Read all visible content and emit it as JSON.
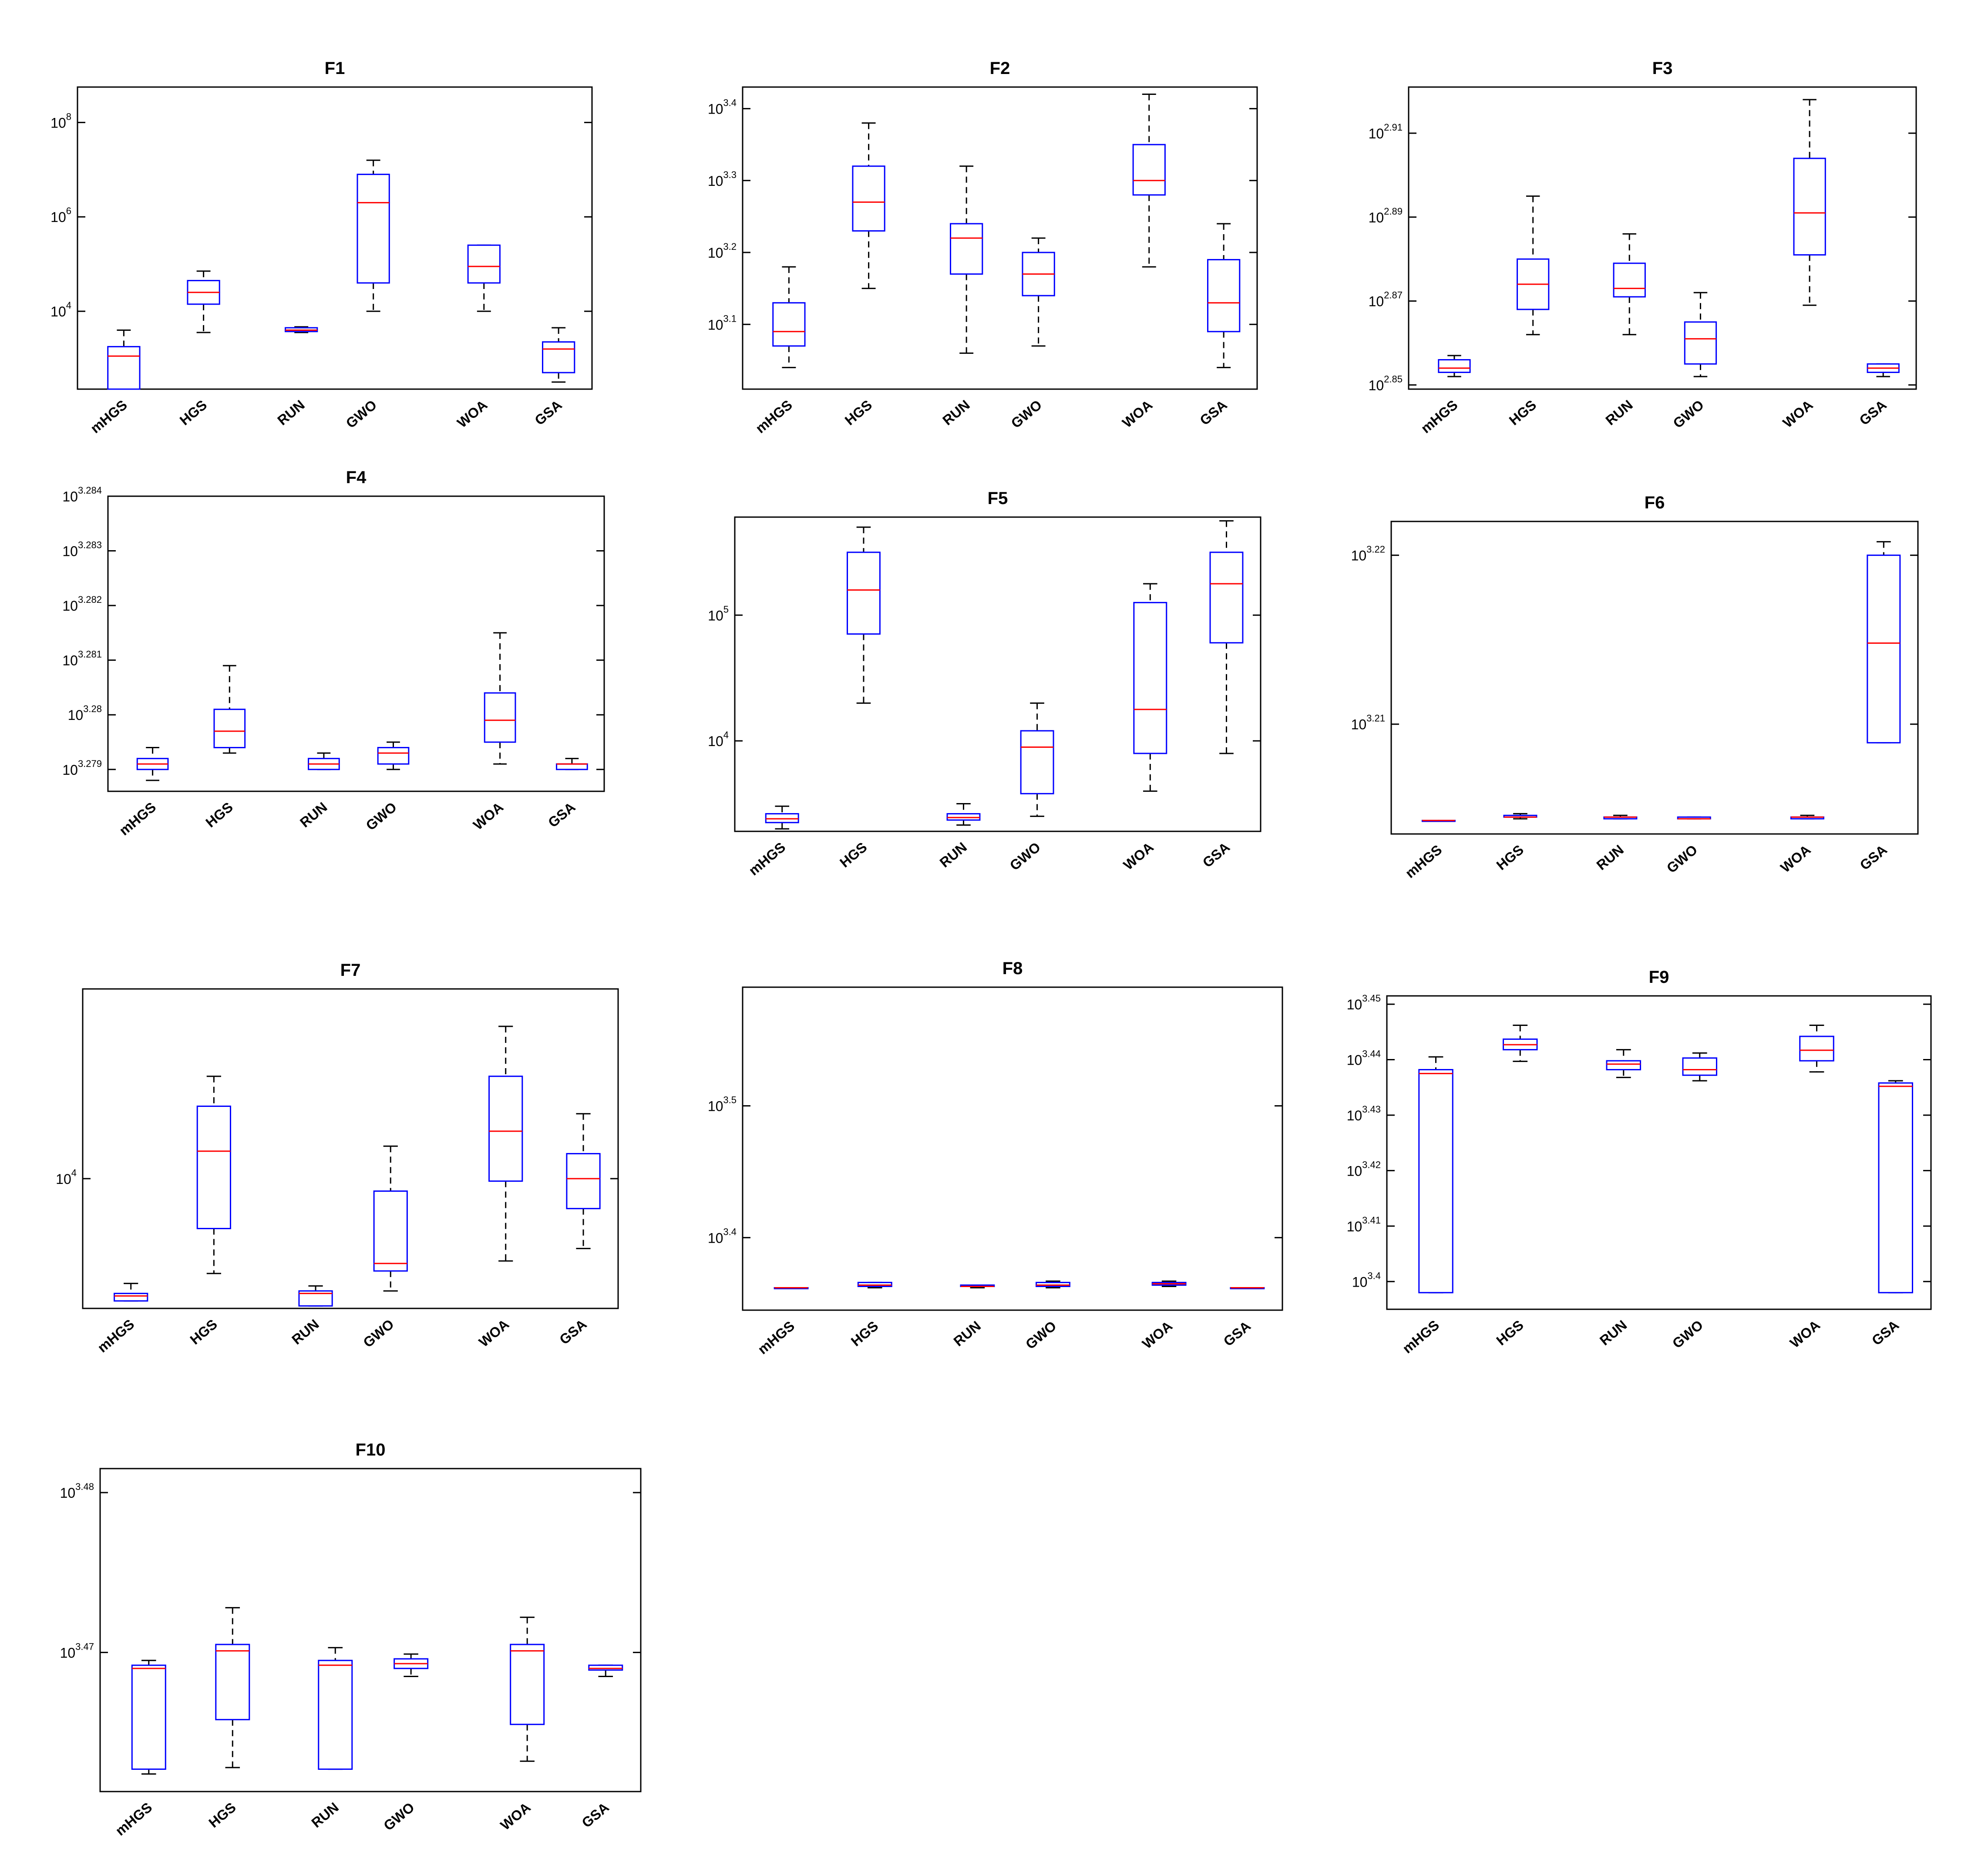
{
  "colors": {
    "box": "#0000ff",
    "median": "#ff0000",
    "whisker": "#000000",
    "axes": "#000000",
    "background": "#ffffff"
  },
  "chart_data": [
    {
      "type": "box",
      "title": "F1",
      "xlabel": "",
      "ylabel": "",
      "yscale": "log10",
      "categories": [
        "mHGS",
        "HGS",
        "RUN",
        "GWO",
        "WOA",
        "GSA"
      ],
      "yticks": [
        {
          "label_base": "10",
          "label_exp": "4",
          "value_log": 4
        },
        {
          "label_base": "10",
          "label_exp": "6",
          "value_log": 6
        },
        {
          "label_base": "10",
          "label_exp": "8",
          "value_log": 8
        }
      ],
      "ylim_log": [
        2.35,
        8.75
      ],
      "series": [
        {
          "category": "mHGS",
          "min": 2.35,
          "q1": 2.35,
          "median": 3.05,
          "q3": 3.25,
          "max": 3.6
        },
        {
          "category": "HGS",
          "min": 3.55,
          "q1": 4.15,
          "median": 4.4,
          "q3": 4.65,
          "max": 4.85
        },
        {
          "category": "RUN",
          "min": 3.55,
          "q1": 3.57,
          "median": 3.6,
          "q3": 3.65,
          "max": 3.67
        },
        {
          "category": "GWO",
          "min": 4.0,
          "q1": 4.6,
          "median": 6.3,
          "q3": 6.9,
          "max": 7.2
        },
        {
          "category": "WOA",
          "min": 4.0,
          "q1": 4.6,
          "median": 4.95,
          "q3": 5.4,
          "max": 5.4
        },
        {
          "category": "GSA",
          "min": 2.5,
          "q1": 2.7,
          "median": 3.2,
          "q3": 3.35,
          "max": 3.65
        }
      ]
    },
    {
      "type": "box",
      "title": "F2",
      "xlabel": "",
      "ylabel": "",
      "yscale": "log10",
      "categories": [
        "mHGS",
        "HGS",
        "RUN",
        "GWO",
        "WOA",
        "GSA"
      ],
      "yticks": [
        {
          "label_base": "10",
          "label_exp": "3.1",
          "value_log": 3.1
        },
        {
          "label_base": "10",
          "label_exp": "3.2",
          "value_log": 3.2
        },
        {
          "label_base": "10",
          "label_exp": "3.3",
          "value_log": 3.3
        },
        {
          "label_base": "10",
          "label_exp": "3.4",
          "value_log": 3.4
        }
      ],
      "ylim_log": [
        3.01,
        3.43
      ],
      "series": [
        {
          "category": "mHGS",
          "min": 3.04,
          "q1": 3.07,
          "median": 3.09,
          "q3": 3.13,
          "max": 3.18
        },
        {
          "category": "HGS",
          "min": 3.15,
          "q1": 3.23,
          "median": 3.27,
          "q3": 3.32,
          "max": 3.38
        },
        {
          "category": "RUN",
          "min": 3.06,
          "q1": 3.17,
          "median": 3.22,
          "q3": 3.24,
          "max": 3.32
        },
        {
          "category": "GWO",
          "min": 3.07,
          "q1": 3.14,
          "median": 3.17,
          "q3": 3.2,
          "max": 3.22
        },
        {
          "category": "WOA",
          "min": 3.18,
          "q1": 3.28,
          "median": 3.3,
          "q3": 3.35,
          "max": 3.42
        },
        {
          "category": "GSA",
          "min": 3.04,
          "q1": 3.09,
          "median": 3.13,
          "q3": 3.19,
          "max": 3.24
        }
      ]
    },
    {
      "type": "box",
      "title": "F3",
      "xlabel": "",
      "ylabel": "",
      "yscale": "log10",
      "categories": [
        "mHGS",
        "HGS",
        "RUN",
        "GWO",
        "WOA",
        "GSA"
      ],
      "yticks": [
        {
          "label_base": "10",
          "label_exp": "2.85",
          "value_log": 2.85
        },
        {
          "label_base": "10",
          "label_exp": "2.87",
          "value_log": 2.87
        },
        {
          "label_base": "10",
          "label_exp": "2.89",
          "value_log": 2.89
        },
        {
          "label_base": "10",
          "label_exp": "2.91",
          "value_log": 2.91
        }
      ],
      "ylim_log": [
        2.849,
        2.921
      ],
      "series": [
        {
          "category": "mHGS",
          "min": 2.852,
          "q1": 2.853,
          "median": 2.854,
          "q3": 2.856,
          "max": 2.857
        },
        {
          "category": "HGS",
          "min": 2.862,
          "q1": 2.868,
          "median": 2.874,
          "q3": 2.88,
          "max": 2.895
        },
        {
          "category": "RUN",
          "min": 2.862,
          "q1": 2.871,
          "median": 2.873,
          "q3": 2.879,
          "max": 2.886
        },
        {
          "category": "GWO",
          "min": 2.852,
          "q1": 2.855,
          "median": 2.861,
          "q3": 2.865,
          "max": 2.872
        },
        {
          "category": "WOA",
          "min": 2.869,
          "q1": 2.881,
          "median": 2.891,
          "q3": 2.904,
          "max": 2.918
        },
        {
          "category": "GSA",
          "min": 2.852,
          "q1": 2.853,
          "median": 2.854,
          "q3": 2.855,
          "max": 2.855
        }
      ]
    },
    {
      "type": "box",
      "title": "F4",
      "xlabel": "",
      "ylabel": "",
      "yscale": "log10",
      "categories": [
        "mHGS",
        "HGS",
        "RUN",
        "GWO",
        "WOA",
        "GSA"
      ],
      "yticks": [
        {
          "label_base": "10",
          "label_exp": "3.279",
          "value_log": 3.279
        },
        {
          "label_base": "10",
          "label_exp": "3.28",
          "value_log": 3.28
        },
        {
          "label_base": "10",
          "label_exp": "3.281",
          "value_log": 3.281
        },
        {
          "label_base": "10",
          "label_exp": "3.282",
          "value_log": 3.282
        },
        {
          "label_base": "10",
          "label_exp": "3.283",
          "value_log": 3.283
        },
        {
          "label_base": "10",
          "label_exp": "3.284",
          "value_log": 3.284
        }
      ],
      "ylim_log": [
        3.2786,
        3.284
      ],
      "series": [
        {
          "category": "mHGS",
          "min": 3.2788,
          "q1": 3.279,
          "median": 3.2791,
          "q3": 3.2792,
          "max": 3.2794
        },
        {
          "category": "HGS",
          "min": 3.2793,
          "q1": 3.2794,
          "median": 3.2797,
          "q3": 3.2801,
          "max": 3.2809
        },
        {
          "category": "RUN",
          "min": 3.279,
          "q1": 3.279,
          "median": 3.2791,
          "q3": 3.2792,
          "max": 3.2793
        },
        {
          "category": "GWO",
          "min": 3.279,
          "q1": 3.2791,
          "median": 3.2793,
          "q3": 3.2794,
          "max": 3.2795
        },
        {
          "category": "WOA",
          "min": 3.2791,
          "q1": 3.2795,
          "median": 3.2799,
          "q3": 3.2804,
          "max": 3.2815
        },
        {
          "category": "GSA",
          "min": 3.279,
          "q1": 3.279,
          "median": 3.2791,
          "q3": 3.2791,
          "max": 3.2792
        }
      ]
    },
    {
      "type": "box",
      "title": "F5",
      "xlabel": "",
      "ylabel": "",
      "yscale": "log10",
      "categories": [
        "mHGS",
        "HGS",
        "RUN",
        "GWO",
        "WOA",
        "GSA"
      ],
      "yticks": [
        {
          "label_base": "10",
          "label_exp": "4",
          "value_log": 4
        },
        {
          "label_base": "10",
          "label_exp": "5",
          "value_log": 5
        }
      ],
      "ylim_log": [
        3.28,
        5.78
      ],
      "series": [
        {
          "category": "mHGS",
          "min": 3.3,
          "q1": 3.35,
          "median": 3.38,
          "q3": 3.42,
          "max": 3.48
        },
        {
          "category": "HGS",
          "min": 4.3,
          "q1": 4.85,
          "median": 5.2,
          "q3": 5.5,
          "max": 5.7
        },
        {
          "category": "RUN",
          "min": 3.33,
          "q1": 3.37,
          "median": 3.39,
          "q3": 3.42,
          "max": 3.5
        },
        {
          "category": "GWO",
          "min": 3.4,
          "q1": 3.58,
          "median": 3.95,
          "q3": 4.08,
          "max": 4.3
        },
        {
          "category": "WOA",
          "min": 3.6,
          "q1": 3.9,
          "median": 4.25,
          "q3": 5.1,
          "max": 5.25
        },
        {
          "category": "GSA",
          "min": 3.9,
          "q1": 4.78,
          "median": 5.25,
          "q3": 5.5,
          "max": 5.75
        }
      ]
    },
    {
      "type": "box",
      "title": "F6",
      "xlabel": "",
      "ylabel": "",
      "yscale": "log10",
      "categories": [
        "mHGS",
        "HGS",
        "RUN",
        "GWO",
        "WOA",
        "GSA"
      ],
      "yticks": [
        {
          "label_base": "10",
          "label_exp": "3.21",
          "value_log": 3.21
        },
        {
          "label_base": "10",
          "label_exp": "3.22",
          "value_log": 3.22
        }
      ],
      "ylim_log": [
        3.2035,
        3.222
      ],
      "series": [
        {
          "category": "mHGS",
          "min": 3.2043,
          "q1": 3.2043,
          "median": 3.2043,
          "q3": 3.2043,
          "max": 3.2043
        },
        {
          "category": "HGS",
          "min": 3.2044,
          "q1": 3.2045,
          "median": 3.2045,
          "q3": 3.2046,
          "max": 3.2047
        },
        {
          "category": "RUN",
          "min": 3.2044,
          "q1": 3.2044,
          "median": 3.2045,
          "q3": 3.2045,
          "max": 3.2046
        },
        {
          "category": "GWO",
          "min": 3.2044,
          "q1": 3.2044,
          "median": 3.2044,
          "q3": 3.2045,
          "max": 3.2045
        },
        {
          "category": "WOA",
          "min": 3.2044,
          "q1": 3.2044,
          "median": 3.2045,
          "q3": 3.2045,
          "max": 3.2046
        },
        {
          "category": "GSA",
          "min": 3.2089,
          "q1": 3.2089,
          "median": 3.2148,
          "q3": 3.22,
          "max": 3.2208
        }
      ]
    },
    {
      "type": "box",
      "title": "F7",
      "xlabel": "",
      "ylabel": "",
      "yscale": "log10",
      "categories": [
        "mHGS",
        "HGS",
        "RUN",
        "GWO",
        "WOA",
        "GSA"
      ],
      "yticks": [
        {
          "label_base": "10",
          "label_exp": "4",
          "value_log": 4
        }
      ],
      "ylim_log": [
        3.48,
        4.76
      ],
      "series": [
        {
          "category": "mHGS",
          "min": 3.51,
          "q1": 3.51,
          "median": 3.53,
          "q3": 3.54,
          "max": 3.58
        },
        {
          "category": "HGS",
          "min": 3.62,
          "q1": 3.8,
          "median": 4.11,
          "q3": 4.29,
          "max": 4.41
        },
        {
          "category": "RUN",
          "min": 3.49,
          "q1": 3.49,
          "median": 3.54,
          "q3": 3.55,
          "max": 3.57
        },
        {
          "category": "GWO",
          "min": 3.55,
          "q1": 3.63,
          "median": 3.66,
          "q3": 3.95,
          "max": 4.13
        },
        {
          "category": "WOA",
          "min": 3.67,
          "q1": 3.99,
          "median": 4.19,
          "q3": 4.41,
          "max": 4.61
        },
        {
          "category": "GSA",
          "min": 3.72,
          "q1": 3.88,
          "median": 4.0,
          "q3": 4.1,
          "max": 4.26
        }
      ]
    },
    {
      "type": "box",
      "title": "F8",
      "xlabel": "",
      "ylabel": "",
      "yscale": "log10",
      "categories": [
        "mHGS",
        "HGS",
        "RUN",
        "GWO",
        "WOA",
        "GSA"
      ],
      "yticks": [
        {
          "label_base": "10",
          "label_exp": "3.4",
          "value_log": 3.4
        },
        {
          "label_base": "10",
          "label_exp": "3.5",
          "value_log": 3.5
        }
      ],
      "ylim_log": [
        3.345,
        3.59
      ],
      "series": [
        {
          "category": "mHGS",
          "min": 3.362,
          "q1": 3.362,
          "median": 3.362,
          "q3": 3.362,
          "max": 3.362
        },
        {
          "category": "HGS",
          "min": 3.362,
          "q1": 3.363,
          "median": 3.364,
          "q3": 3.366,
          "max": 3.366
        },
        {
          "category": "RUN",
          "min": 3.362,
          "q1": 3.363,
          "median": 3.363,
          "q3": 3.364,
          "max": 3.364
        },
        {
          "category": "GWO",
          "min": 3.362,
          "q1": 3.363,
          "median": 3.364,
          "q3": 3.366,
          "max": 3.367
        },
        {
          "category": "WOA",
          "min": 3.363,
          "q1": 3.364,
          "median": 3.365,
          "q3": 3.366,
          "max": 3.367
        },
        {
          "category": "GSA",
          "min": 3.362,
          "q1": 3.362,
          "median": 3.362,
          "q3": 3.362,
          "max": 3.362
        }
      ]
    },
    {
      "type": "box",
      "title": "F9",
      "xlabel": "",
      "ylabel": "",
      "yscale": "log10",
      "categories": [
        "mHGS",
        "HGS",
        "RUN",
        "GWO",
        "WOA",
        "GSA"
      ],
      "yticks": [
        {
          "label_base": "10",
          "label_exp": "3.4",
          "value_log": 3.4
        },
        {
          "label_base": "10",
          "label_exp": "3.41",
          "value_log": 3.41
        },
        {
          "label_base": "10",
          "label_exp": "3.42",
          "value_log": 3.42
        },
        {
          "label_base": "10",
          "label_exp": "3.43",
          "value_log": 3.43
        },
        {
          "label_base": "10",
          "label_exp": "3.44",
          "value_log": 3.44
        },
        {
          "label_base": "10",
          "label_exp": "3.45",
          "value_log": 3.45
        }
      ],
      "ylim_log": [
        3.395,
        3.4515
      ],
      "series": [
        {
          "category": "mHGS",
          "min": 3.398,
          "q1": 3.398,
          "median": 3.4375,
          "q3": 3.4382,
          "max": 3.4405
        },
        {
          "category": "HGS",
          "min": 3.4397,
          "q1": 3.4418,
          "median": 3.4427,
          "q3": 3.4437,
          "max": 3.4462
        },
        {
          "category": "RUN",
          "min": 3.4368,
          "q1": 3.4382,
          "median": 3.4392,
          "q3": 3.4398,
          "max": 3.4418
        },
        {
          "category": "GWO",
          "min": 3.4362,
          "q1": 3.4372,
          "median": 3.4382,
          "q3": 3.4403,
          "max": 3.4412
        },
        {
          "category": "WOA",
          "min": 3.4378,
          "q1": 3.4398,
          "median": 3.4417,
          "q3": 3.4442,
          "max": 3.4462
        },
        {
          "category": "GSA",
          "min": 3.398,
          "q1": 3.398,
          "median": 3.4352,
          "q3": 3.4358,
          "max": 3.4362
        }
      ]
    },
    {
      "type": "box",
      "title": "F10",
      "xlabel": "",
      "ylabel": "",
      "yscale": "log10",
      "categories": [
        "mHGS",
        "HGS",
        "RUN",
        "GWO",
        "WOA",
        "GSA"
      ],
      "yticks": [
        {
          "label_base": "10",
          "label_exp": "3.47",
          "value_log": 3.47
        },
        {
          "label_base": "10",
          "label_exp": "3.48",
          "value_log": 3.48
        }
      ],
      "ylim_log": [
        3.4613,
        3.4815
      ],
      "series": [
        {
          "category": "mHGS",
          "min": 3.4624,
          "q1": 3.4627,
          "median": 3.469,
          "q3": 3.4692,
          "max": 3.4695
        },
        {
          "category": "HGS",
          "min": 3.4628,
          "q1": 3.4658,
          "median": 3.4701,
          "q3": 3.4705,
          "max": 3.4728
        },
        {
          "category": "RUN",
          "min": 3.4627,
          "q1": 3.4627,
          "median": 3.4692,
          "q3": 3.4695,
          "max": 3.4703
        },
        {
          "category": "GWO",
          "min": 3.4685,
          "q1": 3.469,
          "median": 3.4693,
          "q3": 3.4696,
          "max": 3.4699
        },
        {
          "category": "WOA",
          "min": 3.4632,
          "q1": 3.4655,
          "median": 3.4701,
          "q3": 3.4705,
          "max": 3.4722
        },
        {
          "category": "GSA",
          "min": 3.4685,
          "q1": 3.4689,
          "median": 3.469,
          "q3": 3.4692,
          "max": 3.4692
        }
      ]
    }
  ]
}
